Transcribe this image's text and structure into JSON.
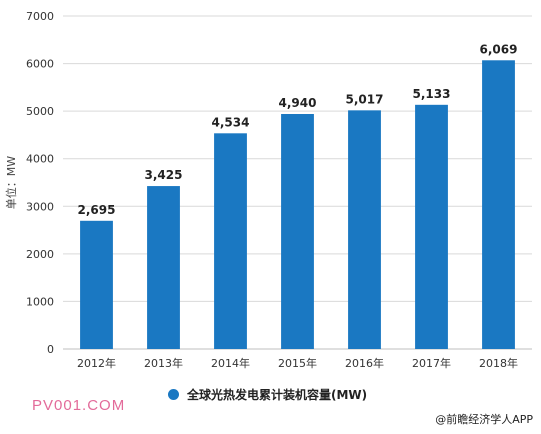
{
  "chart_data": {
    "type": "bar",
    "categories": [
      "2012年",
      "2013年",
      "2014年",
      "2015年",
      "2016年",
      "2017年",
      "2018年"
    ],
    "values": [
      2695,
      3425,
      4534,
      4940,
      5017,
      5133,
      6069
    ],
    "data_labels": [
      "2,695",
      "3,425",
      "4,534",
      "4,940",
      "5,017",
      "5,133",
      "6,069"
    ],
    "ylabel": "单位：MW",
    "ylim": [
      0,
      7000
    ],
    "yticks": [
      0,
      1000,
      2000,
      3000,
      4000,
      5000,
      6000,
      7000
    ],
    "grid": true,
    "legend": [
      "全球光热发电累计装机容量(MW)"
    ],
    "legend_position": "bottom",
    "bar_color": "#1a78c2"
  },
  "footer": {
    "site": "PV001.COM",
    "credit": "@前瞻经济学人APP"
  }
}
